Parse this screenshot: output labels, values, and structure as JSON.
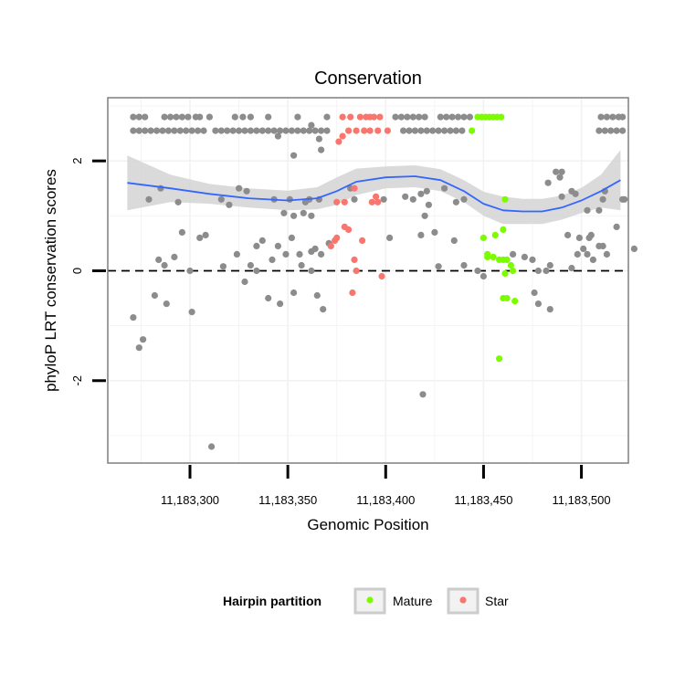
{
  "chart_data": {
    "type": "scatter",
    "title": "Conservation",
    "xlabel": "Genomic Position",
    "ylabel": "phyloP LRT conservation scores",
    "xlim": [
      11183258,
      11183524
    ],
    "ylim": [
      -3.5,
      3.15
    ],
    "x_ticks": [
      11183300,
      11183350,
      11183400,
      11183450,
      11183500
    ],
    "x_tick_labels": [
      "11,183,300",
      "11,183,350",
      "11,183,400",
      "11,183,450",
      "11,183,500"
    ],
    "y_ticks": [
      -2,
      0,
      2
    ],
    "y_tick_labels": [
      "-2",
      "0",
      "2"
    ],
    "reference_line": {
      "y": 0,
      "style": "dashed"
    },
    "legend": {
      "title": "Hairpin partition",
      "position": "bottom",
      "entries": [
        {
          "label": "Mature",
          "color": "#7cfc00"
        },
        {
          "label": "Star",
          "color": "#f8766d"
        }
      ]
    },
    "colors": {
      "other": "#8c8c8c",
      "Mature": "#7cfc00",
      "Star": "#f8766d",
      "smooth": "#3366ff",
      "band": "#d3d3d3"
    },
    "series": [
      {
        "name": "Other",
        "points": [
          [
            11183271,
            2.8
          ],
          [
            11183274,
            2.8
          ],
          [
            11183277,
            2.8
          ],
          [
            11183287,
            2.8
          ],
          [
            11183290,
            2.8
          ],
          [
            11183293,
            2.8
          ],
          [
            11183296,
            2.8
          ],
          [
            11183299,
            2.8
          ],
          [
            11183303,
            2.8
          ],
          [
            11183305,
            2.8
          ],
          [
            11183310,
            2.8
          ],
          [
            11183323,
            2.8
          ],
          [
            11183327,
            2.8
          ],
          [
            11183331,
            2.8
          ],
          [
            11183340,
            2.8
          ],
          [
            11183355,
            2.8
          ],
          [
            11183370,
            2.8
          ],
          [
            11183405,
            2.8
          ],
          [
            11183408,
            2.8
          ],
          [
            11183411,
            2.8
          ],
          [
            11183414,
            2.8
          ],
          [
            11183417,
            2.8
          ],
          [
            11183420,
            2.8
          ],
          [
            11183428,
            2.8
          ],
          [
            11183431,
            2.8
          ],
          [
            11183434,
            2.8
          ],
          [
            11183437,
            2.8
          ],
          [
            11183440,
            2.8
          ],
          [
            11183443,
            2.8
          ],
          [
            11183510,
            2.8
          ],
          [
            11183513,
            2.8
          ],
          [
            11183516,
            2.8
          ],
          [
            11183519,
            2.8
          ],
          [
            11183521,
            2.8
          ],
          [
            11183271,
            2.55
          ],
          [
            11183274,
            2.55
          ],
          [
            11183277,
            2.55
          ],
          [
            11183280,
            2.55
          ],
          [
            11183283,
            2.55
          ],
          [
            11183286,
            2.55
          ],
          [
            11183289,
            2.55
          ],
          [
            11183292,
            2.55
          ],
          [
            11183295,
            2.55
          ],
          [
            11183298,
            2.55
          ],
          [
            11183301,
            2.55
          ],
          [
            11183304,
            2.55
          ],
          [
            11183307,
            2.55
          ],
          [
            11183313,
            2.55
          ],
          [
            11183316,
            2.55
          ],
          [
            11183319,
            2.55
          ],
          [
            11183322,
            2.55
          ],
          [
            11183325,
            2.55
          ],
          [
            11183328,
            2.55
          ],
          [
            11183331,
            2.55
          ],
          [
            11183334,
            2.55
          ],
          [
            11183337,
            2.55
          ],
          [
            11183340,
            2.55
          ],
          [
            11183343,
            2.55
          ],
          [
            11183346,
            2.55
          ],
          [
            11183349,
            2.55
          ],
          [
            11183352,
            2.55
          ],
          [
            11183355,
            2.55
          ],
          [
            11183358,
            2.55
          ],
          [
            11183361,
            2.55
          ],
          [
            11183364,
            2.55
          ],
          [
            11183367,
            2.55
          ],
          [
            11183370,
            2.55
          ],
          [
            11183409,
            2.55
          ],
          [
            11183412,
            2.55
          ],
          [
            11183415,
            2.55
          ],
          [
            11183418,
            2.55
          ],
          [
            11183421,
            2.55
          ],
          [
            11183424,
            2.55
          ],
          [
            11183427,
            2.55
          ],
          [
            11183430,
            2.55
          ],
          [
            11183433,
            2.55
          ],
          [
            11183436,
            2.55
          ],
          [
            11183439,
            2.55
          ],
          [
            11183509,
            2.55
          ],
          [
            11183512,
            2.55
          ],
          [
            11183515,
            2.55
          ],
          [
            11183518,
            2.55
          ],
          [
            11183521,
            2.55
          ],
          [
            11183345,
            2.45
          ],
          [
            11183362,
            2.65
          ],
          [
            11183366,
            2.4
          ],
          [
            11183367,
            2.2
          ],
          [
            11183353,
            2.1
          ],
          [
            11183361,
            1.3
          ],
          [
            11183285,
            1.5
          ],
          [
            11183279,
            1.3
          ],
          [
            11183294,
            1.25
          ],
          [
            11183325,
            1.5
          ],
          [
            11183329,
            1.45
          ],
          [
            11183316,
            1.3
          ],
          [
            11183320,
            1.2
          ],
          [
            11183343,
            1.3
          ],
          [
            11183351,
            1.3
          ],
          [
            11183366,
            1.3
          ],
          [
            11183359,
            1.25
          ],
          [
            11183348,
            1.05
          ],
          [
            11183358,
            1.05
          ],
          [
            11183353,
            1.0
          ],
          [
            11183362,
            1.0
          ],
          [
            11183382,
            1.5
          ],
          [
            11183384,
            1.3
          ],
          [
            11183399,
            1.3
          ],
          [
            11183414,
            1.3
          ],
          [
            11183418,
            1.4
          ],
          [
            11183422,
            1.2
          ],
          [
            11183430,
            1.5
          ],
          [
            11183421,
            1.45
          ],
          [
            11183436,
            1.25
          ],
          [
            11183420,
            1.0
          ],
          [
            11183440,
            1.3
          ],
          [
            11183487,
            1.8
          ],
          [
            11183483,
            1.6
          ],
          [
            11183490,
            1.8
          ],
          [
            11183489,
            1.7
          ],
          [
            11183495,
            1.45
          ],
          [
            11183497,
            1.4
          ],
          [
            11183490,
            1.35
          ],
          [
            11183503,
            1.1
          ],
          [
            11183509,
            1.1
          ],
          [
            11183511,
            1.3
          ],
          [
            11183512,
            1.45
          ],
          [
            11183521,
            1.3
          ],
          [
            11183522,
            1.3
          ],
          [
            11183305,
            0.6
          ],
          [
            11183308,
            0.65
          ],
          [
            11183296,
            0.7
          ],
          [
            11183324,
            0.3
          ],
          [
            11183334,
            0.45
          ],
          [
            11183337,
            0.55
          ],
          [
            11183342,
            0.2
          ],
          [
            11183345,
            0.45
          ],
          [
            11183349,
            0.3
          ],
          [
            11183352,
            0.6
          ],
          [
            11183356,
            0.3
          ],
          [
            11183362,
            0.35
          ],
          [
            11183364,
            0.4
          ],
          [
            11183367,
            0.3
          ],
          [
            11183371,
            0.5
          ],
          [
            11183284,
            0.2
          ],
          [
            11183287,
            0.1
          ],
          [
            11183292,
            0.25
          ],
          [
            11183300,
            0.0
          ],
          [
            11183317,
            0.08
          ],
          [
            11183331,
            0.1
          ],
          [
            11183334,
            0.0
          ],
          [
            11183357,
            0.1
          ],
          [
            11183362,
            0.0
          ],
          [
            11183402,
            0.6
          ],
          [
            11183410,
            1.35
          ],
          [
            11183418,
            0.65
          ],
          [
            11183425,
            0.7
          ],
          [
            11183427,
            0.08
          ],
          [
            11183435,
            0.55
          ],
          [
            11183440,
            0.1
          ],
          [
            11183447,
            0.0
          ],
          [
            11183465,
            0.3
          ],
          [
            11183471,
            0.25
          ],
          [
            11183475,
            0.2
          ],
          [
            11183478,
            0.0
          ],
          [
            11183482,
            0.0
          ],
          [
            11183484,
            0.1
          ],
          [
            11183493,
            0.65
          ],
          [
            11183499,
            0.6
          ],
          [
            11183501,
            0.4
          ],
          [
            11183503,
            0.3
          ],
          [
            11183504,
            0.6
          ],
          [
            11183506,
            0.2
          ],
          [
            11183509,
            0.45
          ],
          [
            11183511,
            0.45
          ],
          [
            11183518,
            0.8
          ],
          [
            11183527,
            0.4
          ],
          [
            11183513,
            0.3
          ],
          [
            11183505,
            0.65
          ],
          [
            11183495,
            0.05
          ],
          [
            11183498,
            0.3
          ],
          [
            11183271,
            -0.85
          ],
          [
            11183274,
            -1.4
          ],
          [
            11183276,
            -1.25
          ],
          [
            11183282,
            -0.45
          ],
          [
            11183288,
            -0.6
          ],
          [
            11183301,
            -0.75
          ],
          [
            11183328,
            -0.2
          ],
          [
            11183340,
            -0.5
          ],
          [
            11183346,
            -0.6
          ],
          [
            11183353,
            -0.4
          ],
          [
            11183365,
            -0.45
          ],
          [
            11183368,
            -0.7
          ],
          [
            11183419,
            -2.25
          ],
          [
            11183450,
            -0.1
          ],
          [
            11183476,
            -0.4
          ],
          [
            11183478,
            -0.6
          ],
          [
            11183484,
            -0.7
          ],
          [
            11183311,
            -3.2
          ]
        ]
      },
      {
        "name": "Star",
        "points": [
          [
            11183378,
            2.8
          ],
          [
            11183382,
            2.8
          ],
          [
            11183387,
            2.8
          ],
          [
            11183390,
            2.8
          ],
          [
            11183392,
            2.8
          ],
          [
            11183394,
            2.8
          ],
          [
            11183397,
            2.8
          ],
          [
            11183381,
            2.55
          ],
          [
            11183385,
            2.55
          ],
          [
            11183389,
            2.55
          ],
          [
            11183392,
            2.55
          ],
          [
            11183396,
            2.55
          ],
          [
            11183401,
            2.55
          ],
          [
            11183378,
            2.45
          ],
          [
            11183376,
            2.35
          ],
          [
            11183375,
            1.25
          ],
          [
            11183379,
            1.25
          ],
          [
            11183384,
            1.5
          ],
          [
            11183393,
            1.25
          ],
          [
            11183395,
            1.35
          ],
          [
            11183396,
            1.25
          ],
          [
            11183379,
            0.8
          ],
          [
            11183381,
            0.75
          ],
          [
            11183375,
            0.6
          ],
          [
            11183374,
            0.55
          ],
          [
            11183372,
            0.45
          ],
          [
            11183388,
            0.55
          ],
          [
            11183384,
            0.2
          ],
          [
            11183385,
            0.0
          ],
          [
            11183398,
            -0.1
          ],
          [
            11183383,
            -0.4
          ]
        ]
      },
      {
        "name": "Mature",
        "points": [
          [
            11183447,
            2.8
          ],
          [
            11183449,
            2.8
          ],
          [
            11183451,
            2.8
          ],
          [
            11183453,
            2.8
          ],
          [
            11183455,
            2.8
          ],
          [
            11183457,
            2.8
          ],
          [
            11183459,
            2.8
          ],
          [
            11183444,
            2.55
          ],
          [
            11183461,
            1.3
          ],
          [
            11183450,
            0.6
          ],
          [
            11183456,
            0.65
          ],
          [
            11183460,
            0.75
          ],
          [
            11183452,
            0.3
          ],
          [
            11183455,
            0.25
          ],
          [
            11183458,
            0.2
          ],
          [
            11183460,
            0.2
          ],
          [
            11183462,
            0.2
          ],
          [
            11183464,
            0.1
          ],
          [
            11183465,
            0.0
          ],
          [
            11183461,
            -0.05
          ],
          [
            11183460,
            -0.5
          ],
          [
            11183462,
            -0.5
          ],
          [
            11183466,
            -0.55
          ],
          [
            11183458,
            -1.6
          ],
          [
            11183452,
            0.25
          ]
        ]
      }
    ],
    "smooth": {
      "method": "loess",
      "x": [
        11183268,
        11183290,
        11183310,
        11183330,
        11183350,
        11183365,
        11183375,
        11183385,
        11183400,
        11183415,
        11183428,
        11183440,
        11183450,
        11183460,
        11183470,
        11183480,
        11183490,
        11183500,
        11183510,
        11183520
      ],
      "y": [
        1.6,
        1.5,
        1.4,
        1.32,
        1.28,
        1.32,
        1.45,
        1.62,
        1.7,
        1.72,
        1.65,
        1.45,
        1.22,
        1.1,
        1.08,
        1.08,
        1.15,
        1.28,
        1.45,
        1.65
      ],
      "se_lower": [
        1.1,
        1.25,
        1.22,
        1.15,
        1.1,
        1.12,
        1.2,
        1.38,
        1.5,
        1.52,
        1.45,
        1.25,
        1.0,
        0.85,
        0.85,
        0.85,
        0.93,
        1.05,
        1.15,
        1.1
      ],
      "se_upper": [
        2.1,
        1.75,
        1.58,
        1.5,
        1.46,
        1.52,
        1.7,
        1.86,
        1.9,
        1.92,
        1.85,
        1.65,
        1.44,
        1.35,
        1.31,
        1.31,
        1.37,
        1.51,
        1.75,
        2.2
      ]
    }
  }
}
